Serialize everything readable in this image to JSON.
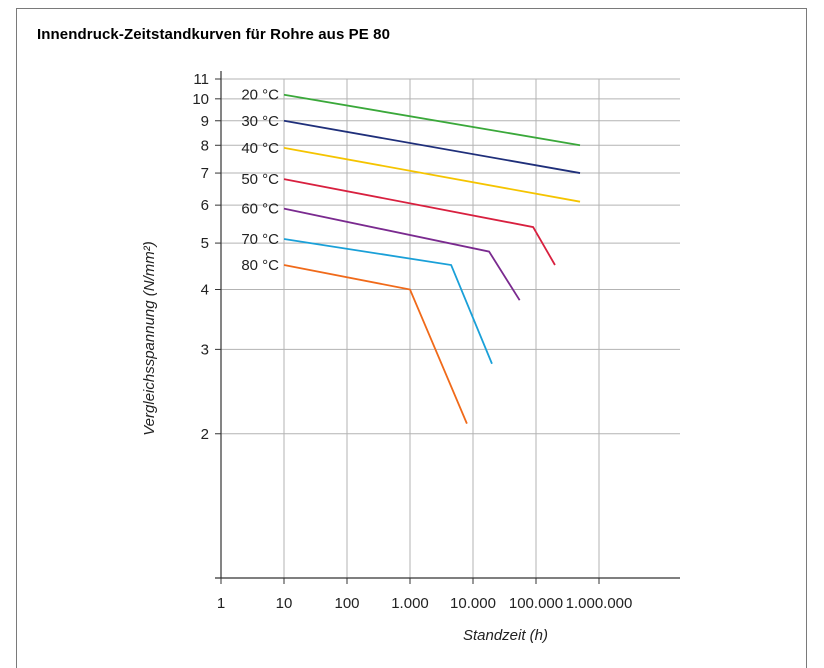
{
  "chart_data": {
    "type": "line",
    "title": "Innendruck-Zeitstandkurven für Rohre aus PE 80",
    "xlabel": "Standzeit (h)",
    "ylabel": "Vergleichsspannung (N/mm²)",
    "x_scale": "log",
    "y_scale": "log",
    "xlim": [
      1,
      10000000
    ],
    "ylim": [
      1,
      11
    ],
    "x_ticks": [
      1,
      10,
      100,
      1000,
      10000,
      100000,
      1000000
    ],
    "x_tick_labels": [
      "1",
      "10",
      "100",
      "1.000",
      "10.000",
      "100.000",
      "1.000.000"
    ],
    "y_ticks": [
      2,
      3,
      4,
      5,
      6,
      7,
      8,
      9,
      10,
      11
    ],
    "y_tick_labels": [
      "2",
      "3",
      "4",
      "5",
      "6",
      "7",
      "8",
      "9",
      "10",
      "11"
    ],
    "grid": true,
    "series": [
      {
        "name": "20 °C",
        "color": "#3aa83a",
        "points": [
          [
            10,
            10.2
          ],
          [
            500000,
            8.0
          ]
        ]
      },
      {
        "name": "30 °C",
        "color": "#1f2f7a",
        "points": [
          [
            10,
            9.0
          ],
          [
            500000,
            7.0
          ]
        ]
      },
      {
        "name": "40 °C",
        "color": "#f5c400",
        "points": [
          [
            10,
            7.9
          ],
          [
            500000,
            6.1
          ]
        ]
      },
      {
        "name": "50 °C",
        "color": "#d8203f",
        "points": [
          [
            10,
            6.8
          ],
          [
            90000,
            5.4
          ],
          [
            200000,
            4.5
          ]
        ]
      },
      {
        "name": "60 °C",
        "color": "#7a2a8f",
        "points": [
          [
            10,
            5.9
          ],
          [
            18000,
            4.8
          ],
          [
            55000,
            3.8
          ]
        ]
      },
      {
        "name": "70 °C",
        "color": "#1aa0d8",
        "points": [
          [
            10,
            5.1
          ],
          [
            4500,
            4.5
          ],
          [
            20000,
            2.8
          ]
        ]
      },
      {
        "name": "80 °C",
        "color": "#f06a1a",
        "points": [
          [
            10,
            4.5
          ],
          [
            1000,
            4.0
          ],
          [
            8000,
            2.1
          ]
        ]
      }
    ]
  }
}
